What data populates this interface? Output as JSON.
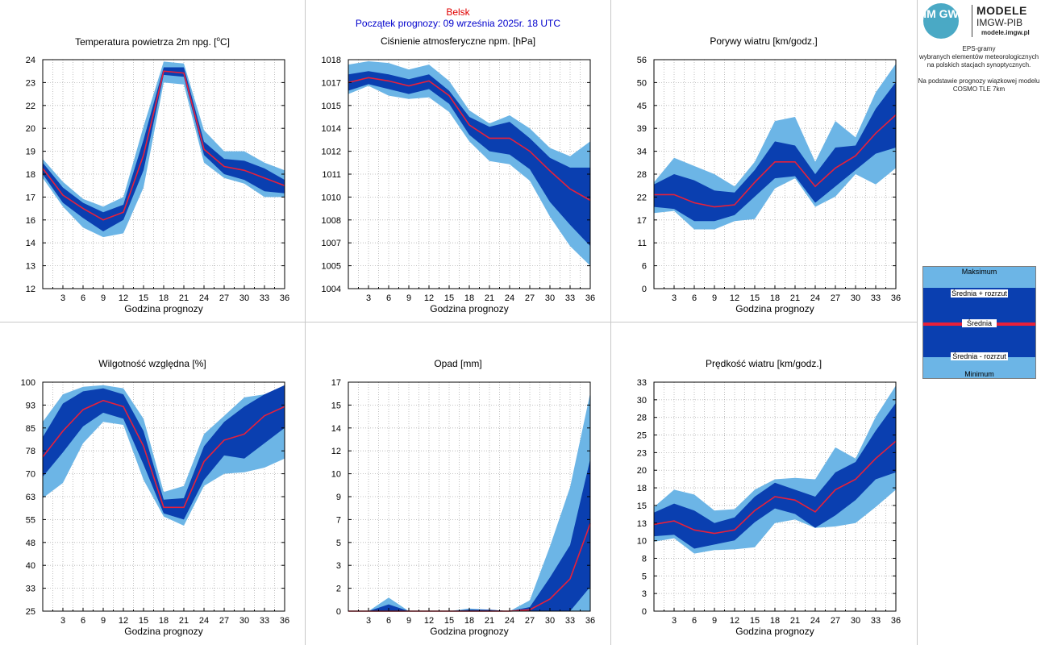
{
  "header": {
    "station": "Belsk",
    "forecast_start": "Początek prognozy: 09 września 2025r. 18 UTC"
  },
  "sidebar": {
    "logo_initials": "IM GW",
    "logo_line1": "MODELE",
    "logo_line2": "IMGW-PIB",
    "logo_url": "modele.imgw.pl",
    "description": [
      "EPS-gramy",
      "wybranych elementów meteorologicznych",
      "na polskich stacjach  synoptycznych.",
      "",
      "Na podstawie prognozy wiązkowej modelu",
      "COSMO TLE 7km"
    ],
    "legend": {
      "max": "Maksimum",
      "mean_plus": "Średnia + rozrzut",
      "mean": "Średnia",
      "mean_minus": "Średnia - rozrzut",
      "min": "Minimum"
    }
  },
  "colors": {
    "outer_band": "#6cb5e6",
    "inner_band": "#0a3fb0",
    "mean_line": "#e8203a",
    "grid": "#b0b0b0"
  },
  "chart_data": [
    {
      "id": "temp",
      "type": "area",
      "title": "Temperatura powietrza 2m npg. [°C]",
      "title_prefix": "Temperatura powietrza 2m npg. [",
      "title_sup": "o",
      "title_suffix": "C]",
      "xlabel": "Godzina prognozy",
      "x": [
        0,
        3,
        6,
        9,
        12,
        15,
        18,
        21,
        24,
        27,
        30,
        33,
        36
      ],
      "xticks": [
        "3",
        "6",
        "9",
        "12",
        "15",
        "18",
        "21",
        "24",
        "27",
        "30",
        "33",
        "36"
      ],
      "ylim": [
        12,
        24
      ],
      "yticks": [
        "12",
        "13",
        "14",
        "16",
        "17",
        "18",
        "19",
        "20",
        "22",
        "23",
        "24"
      ],
      "grid": true,
      "max": [
        18.8,
        17.6,
        16.7,
        16.3,
        16.8,
        20.5,
        23.9,
        23.8,
        20.3,
        19.2,
        19.2,
        18.6,
        18.2
      ],
      "mean_plus": [
        18.6,
        17.3,
        16.5,
        16.0,
        16.4,
        19.8,
        23.6,
        23.6,
        19.7,
        18.8,
        18.7,
        18.3,
        17.7
      ],
      "mean": [
        18.3,
        16.9,
        16.2,
        15.6,
        16.0,
        19.0,
        23.4,
        23.3,
        19.3,
        18.4,
        18.2,
        17.8,
        17.4
      ],
      "mean_minus": [
        18.0,
        16.5,
        15.7,
        15.0,
        15.6,
        18.2,
        23.2,
        23.1,
        19.0,
        18.0,
        17.7,
        17.1,
        17.0
      ],
      "min": [
        17.8,
        16.3,
        15.2,
        14.7,
        14.9,
        17.3,
        22.8,
        22.7,
        18.6,
        17.8,
        17.5,
        16.8,
        16.8
      ]
    },
    {
      "id": "pressure",
      "type": "area",
      "title": "Ciśnienie atmosferyczne npm. [hPa]",
      "xlabel": "Godzina prognozy",
      "x": [
        0,
        3,
        6,
        9,
        12,
        15,
        18,
        21,
        24,
        27,
        30,
        33,
        36
      ],
      "xticks": [
        "3",
        "6",
        "9",
        "12",
        "15",
        "18",
        "21",
        "24",
        "27",
        "30",
        "33",
        "36"
      ],
      "ylim": [
        1004,
        1018
      ],
      "yticks": [
        "1004",
        "1005",
        "1007",
        "1008",
        "1010",
        "1011",
        "1012",
        "1014",
        "1015",
        "1017",
        "1018"
      ],
      "grid": true,
      "max": [
        1017.7,
        1017.9,
        1017.8,
        1017.4,
        1017.7,
        1016.7,
        1014.9,
        1014.1,
        1014.6,
        1013.8,
        1012.6,
        1012.1,
        1013.0
      ],
      "mean_plus": [
        1017.1,
        1017.3,
        1017.1,
        1016.8,
        1017.1,
        1016.1,
        1014.5,
        1013.9,
        1014.2,
        1013.2,
        1012.0,
        1011.4,
        1011.4
      ],
      "mean": [
        1016.6,
        1016.9,
        1016.7,
        1016.4,
        1016.7,
        1015.8,
        1014.0,
        1013.2,
        1013.2,
        1012.4,
        1011.2,
        1010.1,
        1009.4
      ],
      "mean_minus": [
        1016.1,
        1016.5,
        1016.2,
        1015.9,
        1016.2,
        1015.3,
        1013.4,
        1012.4,
        1012.2,
        1011.3,
        1009.3,
        1007.9,
        1006.6
      ],
      "min": [
        1015.9,
        1016.4,
        1015.8,
        1015.6,
        1015.7,
        1014.8,
        1013.0,
        1011.8,
        1011.6,
        1010.6,
        1008.4,
        1006.6,
        1005.4
      ]
    },
    {
      "id": "gusts",
      "type": "area",
      "title": "Porywy wiatru [km/godz.]",
      "xlabel": "Godzina prognozy",
      "x": [
        0,
        3,
        6,
        9,
        12,
        15,
        18,
        21,
        24,
        27,
        30,
        33,
        36
      ],
      "xticks": [
        "3",
        "6",
        "9",
        "12",
        "15",
        "18",
        "21",
        "24",
        "27",
        "30",
        "33",
        "36"
      ],
      "ylim": [
        0,
        56
      ],
      "yticks": [
        "0",
        "6",
        "11",
        "17",
        "22",
        "28",
        "34",
        "39",
        "45",
        "50",
        "56"
      ],
      "grid": true,
      "max": [
        26.0,
        32.0,
        30.0,
        28.0,
        25.0,
        31.0,
        41.0,
        42.0,
        31.0,
        41.0,
        37.0,
        48.0,
        55.0
      ],
      "mean_plus": [
        25.5,
        28.0,
        26.5,
        24.0,
        23.5,
        29.0,
        36.0,
        35.0,
        28.0,
        34.5,
        35.0,
        44.0,
        50.5
      ],
      "mean": [
        23.0,
        23.0,
        21.0,
        20.0,
        20.5,
        26.0,
        31.0,
        31.0,
        25.0,
        29.5,
        32.5,
        38.0,
        42.5
      ],
      "mean_minus": [
        20.0,
        19.5,
        16.5,
        16.5,
        18.0,
        22.5,
        27.0,
        27.5,
        21.0,
        25.0,
        29.0,
        33.0,
        34.5
      ],
      "min": [
        18.5,
        19.0,
        14.5,
        14.5,
        16.5,
        17.0,
        24.5,
        27.0,
        20.0,
        22.5,
        28.0,
        25.5,
        29.5
      ]
    },
    {
      "id": "humidity",
      "type": "area",
      "title": "Wilgotność względna [%]",
      "xlabel": "Godzina prognozy",
      "x": [
        0,
        3,
        6,
        9,
        12,
        15,
        18,
        21,
        24,
        27,
        30,
        33,
        36
      ],
      "xticks": [
        "3",
        "6",
        "9",
        "12",
        "15",
        "18",
        "21",
        "24",
        "27",
        "30",
        "33",
        "36"
      ],
      "ylim": [
        25,
        100
      ],
      "yticks": [
        "25",
        "33",
        "40",
        "48",
        "55",
        "63",
        "70",
        "78",
        "85",
        "93",
        "100"
      ],
      "grid": true,
      "max": [
        87.0,
        96.0,
        98.5,
        99.0,
        98.0,
        88.0,
        64.0,
        66.0,
        83.0,
        89.0,
        95.0,
        96.0,
        98.0
      ],
      "mean_plus": [
        82.0,
        93.0,
        97.0,
        98.0,
        96.0,
        84.0,
        61.5,
        62.0,
        79.0,
        87.0,
        92.0,
        96.0,
        99.0
      ],
      "mean": [
        75.5,
        84.0,
        91.0,
        94.0,
        92.0,
        79.0,
        59.0,
        59.0,
        74.0,
        81.0,
        83.0,
        89.0,
        92.0
      ],
      "mean_minus": [
        69.0,
        77.0,
        85.5,
        90.0,
        88.0,
        73.0,
        57.0,
        55.0,
        68.0,
        76.0,
        75.0,
        80.0,
        85.0
      ],
      "min": [
        62.0,
        67.0,
        80.0,
        87.0,
        86.0,
        68.0,
        56.0,
        53.0,
        66.0,
        70.0,
        70.5,
        72.0,
        75.0
      ]
    },
    {
      "id": "precip",
      "type": "area",
      "title": "Opad [mm]",
      "xlabel": "Godzina prognozy",
      "x": [
        0,
        3,
        6,
        9,
        12,
        15,
        18,
        21,
        24,
        27,
        30,
        33,
        36
      ],
      "xticks": [
        "3",
        "6",
        "9",
        "12",
        "15",
        "18",
        "21",
        "24",
        "27",
        "30",
        "33",
        "36"
      ],
      "ylim": [
        0,
        17
      ],
      "yticks": [
        "0",
        "2",
        "3",
        "5",
        "7",
        "9",
        "10",
        "12",
        "14",
        "15",
        "17"
      ],
      "grid": true,
      "max": [
        0.0,
        0.0,
        1.0,
        0.0,
        0.0,
        0.0,
        0.2,
        0.1,
        0.0,
        0.8,
        4.8,
        9.2,
        16.2
      ],
      "mean_plus": [
        0.0,
        0.0,
        0.5,
        0.0,
        0.0,
        0.0,
        0.1,
        0.1,
        0.0,
        0.3,
        2.5,
        4.9,
        11.3
      ],
      "mean": [
        0.0,
        0.0,
        0.0,
        0.0,
        0.0,
        0.0,
        0.0,
        0.0,
        0.0,
        0.1,
        0.9,
        2.4,
        6.5
      ],
      "mean_minus": [
        0.0,
        0.0,
        0.0,
        0.0,
        0.0,
        0.0,
        0.0,
        0.0,
        0.0,
        0.0,
        0.0,
        0.0,
        1.8
      ],
      "min": [
        0.0,
        0.0,
        0.0,
        0.0,
        0.0,
        0.0,
        0.0,
        0.0,
        0.0,
        0.0,
        0.0,
        0.0,
        0.0
      ]
    },
    {
      "id": "wind",
      "type": "area",
      "title": "Prędkość wiatru [km/godz.]",
      "xlabel": "Godzina prognozy",
      "x": [
        0,
        3,
        6,
        9,
        12,
        15,
        18,
        21,
        24,
        27,
        30,
        33,
        36
      ],
      "xticks": [
        "3",
        "6",
        "9",
        "12",
        "15",
        "18",
        "21",
        "24",
        "27",
        "30",
        "33",
        "36"
      ],
      "ylim": [
        0,
        33
      ],
      "yticks": [
        "0",
        "3",
        "5",
        "8",
        "10",
        "13",
        "15",
        "18",
        "20",
        "23",
        "25",
        "28",
        "30",
        "33"
      ],
      "grid": true,
      "max": [
        15.0,
        17.5,
        16.8,
        14.5,
        14.7,
        17.5,
        19.0,
        19.2,
        19.0,
        23.6,
        22.0,
        28.0,
        32.5
      ],
      "mean_plus": [
        14.2,
        15.5,
        14.5,
        12.7,
        13.5,
        16.5,
        18.5,
        17.5,
        16.5,
        20.0,
        21.5,
        26.0,
        30.0
      ],
      "mean": [
        12.5,
        13.0,
        11.7,
        11.2,
        11.7,
        14.5,
        16.5,
        16.0,
        14.3,
        17.5,
        19.0,
        22.0,
        24.5
      ],
      "mean_minus": [
        10.8,
        11.0,
        9.0,
        9.6,
        10.2,
        12.8,
        14.8,
        14.0,
        12.0,
        13.8,
        16.0,
        19.0,
        20.0
      ],
      "min": [
        10.0,
        10.5,
        8.3,
        8.8,
        8.9,
        9.2,
        12.7,
        13.2,
        12.0,
        12.2,
        12.7,
        15.0,
        17.5
      ]
    }
  ]
}
